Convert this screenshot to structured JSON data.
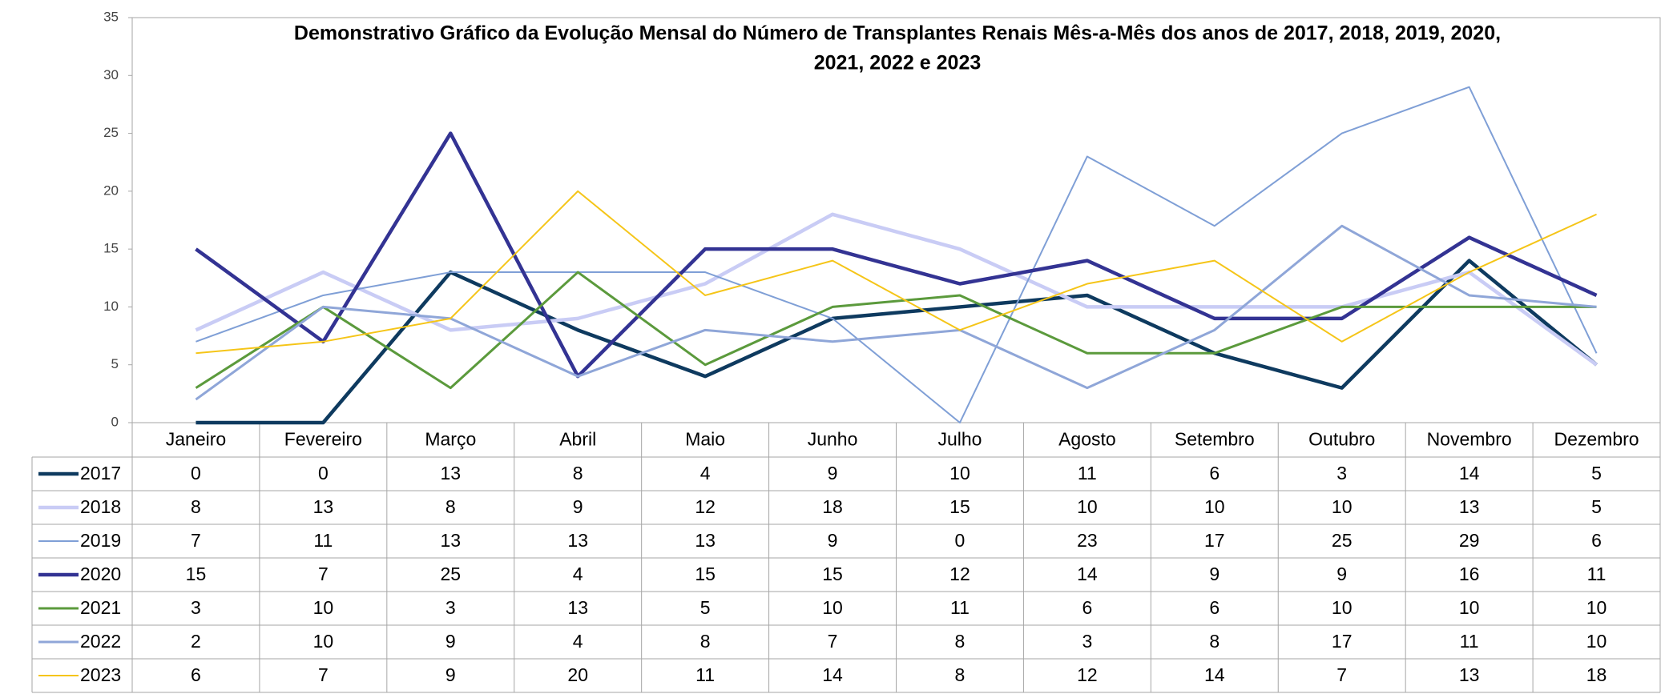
{
  "chart_data": {
    "type": "line",
    "title": [
      "Demonstrativo Gráfico da Evolução Mensal do Número de Transplantes Renais Mês-a-Mês dos anos de  2017, 2018, 2019, 2020,",
      "2021, 2022 e 2023"
    ],
    "categories": [
      "Janeiro",
      "Fevereiro",
      "Março",
      "Abril",
      "Maio",
      "Junho",
      "Julho",
      "Agosto",
      "Setembro",
      "Outubro",
      "Novembro",
      "Dezembro"
    ],
    "ylim": [
      0,
      35
    ],
    "yticks": [
      0,
      5,
      10,
      15,
      20,
      25,
      30,
      35
    ],
    "series": [
      {
        "name": "2017",
        "color": "#0e3a5f",
        "values": [
          0,
          0,
          13,
          8,
          4,
          9,
          10,
          11,
          6,
          3,
          14,
          5
        ]
      },
      {
        "name": "2018",
        "color": "#c9ccf5",
        "values": [
          8,
          13,
          8,
          9,
          12,
          18,
          15,
          10,
          10,
          10,
          13,
          5
        ]
      },
      {
        "name": "2019",
        "color": "#7f9fd6",
        "values": [
          7,
          11,
          13,
          13,
          13,
          9,
          0,
          23,
          17,
          25,
          29,
          6
        ]
      },
      {
        "name": "2020",
        "color": "#333393",
        "values": [
          15,
          7,
          25,
          4,
          15,
          15,
          12,
          14,
          9,
          9,
          16,
          11
        ]
      },
      {
        "name": "2021",
        "color": "#5b9a3c",
        "values": [
          3,
          10,
          3,
          13,
          5,
          10,
          11,
          6,
          6,
          10,
          10,
          10
        ]
      },
      {
        "name": "2022",
        "color": "#8fa6d8",
        "values": [
          2,
          10,
          9,
          4,
          8,
          7,
          8,
          3,
          8,
          17,
          11,
          10
        ]
      },
      {
        "name": "2023",
        "color": "#f5c518",
        "values": [
          6,
          7,
          9,
          20,
          11,
          14,
          8,
          12,
          14,
          7,
          13,
          18
        ]
      }
    ]
  }
}
